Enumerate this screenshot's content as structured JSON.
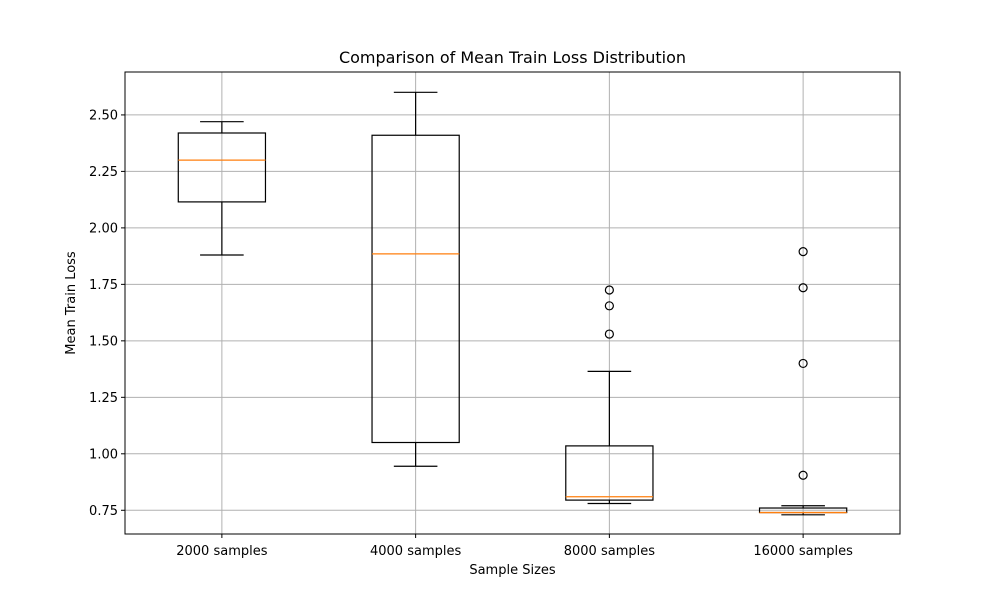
{
  "chart_data": {
    "type": "box",
    "title": "Comparison of Mean Train Loss Distribution",
    "xlabel": "Sample Sizes",
    "ylabel": "Mean Train Loss",
    "categories": [
      "2000 samples",
      "4000 samples",
      "8000 samples",
      "16000 samples"
    ],
    "ylim": [
      0.645,
      2.69
    ],
    "yticks": [
      0.75,
      1.0,
      1.25,
      1.5,
      1.75,
      2.0,
      2.25,
      2.5
    ],
    "ytick_labels": [
      "0.75",
      "1.00",
      "1.25",
      "1.50",
      "1.75",
      "2.00",
      "2.25",
      "2.50"
    ],
    "grid": true,
    "colors": {
      "box": "#000000",
      "median": "#ff7f0e",
      "grid": "#b0b0b0"
    },
    "boxes": [
      {
        "category": "2000 samples",
        "whislo": 1.88,
        "q1": 2.115,
        "med": 2.3,
        "q3": 2.42,
        "whishi": 2.47,
        "fliers": []
      },
      {
        "category": "4000 samples",
        "whislo": 0.945,
        "q1": 1.05,
        "med": 1.885,
        "q3": 2.41,
        "whishi": 2.6,
        "fliers": []
      },
      {
        "category": "8000 samples",
        "whislo": 0.78,
        "q1": 0.795,
        "med": 0.81,
        "q3": 1.035,
        "whishi": 1.365,
        "fliers": [
          1.53,
          1.655,
          1.725
        ]
      },
      {
        "category": "16000 samples",
        "whislo": 0.73,
        "q1": 0.74,
        "med": 0.74,
        "q3": 0.76,
        "whishi": 0.77,
        "fliers": [
          0.905,
          1.4,
          1.735,
          1.895
        ]
      }
    ]
  }
}
